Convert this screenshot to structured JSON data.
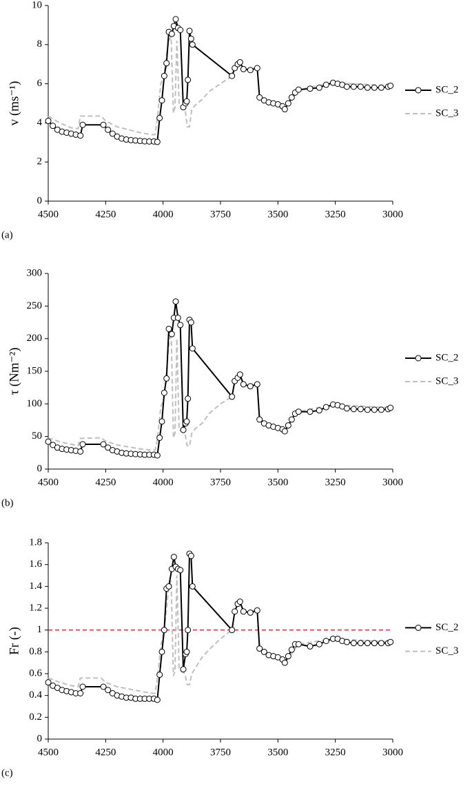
{
  "chart_data": [
    {
      "type": "line",
      "panel_label": "(a)",
      "ylabel": "v (ms⁻¹)",
      "xlim": [
        4500,
        3000
      ],
      "xticks": [
        4500,
        4250,
        4000,
        3750,
        3500,
        3250,
        3000
      ],
      "ylim": [
        0,
        10
      ],
      "yticks": [
        0,
        2,
        4,
        6,
        8,
        10
      ],
      "series": [
        {
          "name": "SC_2",
          "color": "#000000",
          "marker": true,
          "line_style": "solid",
          "x": [
            4500,
            4480,
            4460,
            4440,
            4420,
            4400,
            4380,
            4360,
            4350,
            4260,
            4240,
            4220,
            4200,
            4180,
            4160,
            4140,
            4120,
            4100,
            4080,
            4060,
            4040,
            4025,
            4015,
            4005,
            3995,
            3985,
            3975,
            3962,
            3953,
            3945,
            3935,
            3925,
            3912,
            3902,
            3897,
            3892,
            3885,
            3878,
            3872,
            3700,
            3688,
            3675,
            3665,
            3650,
            3620,
            3590,
            3580,
            3560,
            3540,
            3520,
            3500,
            3480,
            3470,
            3455,
            3440,
            3425,
            3410,
            3360,
            3320,
            3290,
            3260,
            3240,
            3220,
            3200,
            3170,
            3140,
            3110,
            3080,
            3050,
            3020,
            3010
          ],
          "values": [
            4.1,
            3.85,
            3.65,
            3.55,
            3.5,
            3.45,
            3.4,
            3.35,
            3.9,
            3.9,
            3.65,
            3.45,
            3.3,
            3.2,
            3.15,
            3.12,
            3.1,
            3.08,
            3.06,
            3.05,
            3.05,
            3.03,
            4.25,
            5.15,
            6.4,
            7.05,
            8.65,
            8.55,
            8.95,
            9.3,
            8.85,
            8.75,
            4.8,
            5.0,
            5.1,
            6.2,
            8.7,
            8.3,
            8.0,
            6.4,
            6.8,
            7.0,
            7.1,
            6.75,
            6.7,
            6.8,
            5.3,
            5.15,
            5.05,
            5.0,
            4.95,
            4.85,
            4.7,
            5.0,
            5.3,
            5.55,
            5.7,
            5.75,
            5.8,
            5.95,
            6.05,
            6.0,
            5.95,
            5.85,
            5.85,
            5.85,
            5.8,
            5.8,
            5.8,
            5.85,
            5.9
          ]
        },
        {
          "name": "SC_3",
          "color": "#bfbfbf",
          "marker": false,
          "line_style": "dashed",
          "x": [
            4500,
            4450,
            4400,
            4370,
            4360,
            4270,
            4250,
            4200,
            4100,
            4050,
            4035,
            4025,
            4010,
            3995,
            3985,
            3975,
            3965,
            3955,
            3948,
            3940,
            3930,
            3918,
            3905,
            3895,
            3885,
            3875,
            3860,
            3830,
            3800,
            3750,
            3700,
            3688,
            3665,
            3650,
            3590,
            3580,
            3470,
            3410,
            3260,
            3010
          ],
          "values": [
            4.35,
            4.0,
            3.75,
            3.7,
            4.35,
            4.35,
            4.1,
            3.8,
            3.5,
            3.4,
            3.4,
            4.2,
            6.0,
            6.5,
            7.5,
            8.2,
            8.4,
            4.5,
            4.8,
            8.2,
            5.0,
            4.9,
            4.8,
            3.8,
            3.8,
            4.7,
            4.9,
            5.2,
            5.6,
            6.0,
            6.4,
            6.8,
            7.1,
            6.75,
            6.8,
            5.3,
            4.7,
            5.7,
            6.05,
            5.9
          ]
        }
      ]
    },
    {
      "type": "line",
      "panel_label": "(b)",
      "ylabel": "τ (Nm⁻²)",
      "xlim": [
        4500,
        3000
      ],
      "xticks": [
        4500,
        4250,
        4000,
        3750,
        3500,
        3250,
        3000
      ],
      "ylim": [
        0,
        300
      ],
      "yticks": [
        0,
        50,
        100,
        150,
        200,
        250,
        300
      ],
      "series": [
        {
          "name": "SC_2",
          "color": "#000000",
          "marker": true,
          "line_style": "solid",
          "x": [
            4500,
            4480,
            4460,
            4440,
            4420,
            4400,
            4380,
            4360,
            4350,
            4260,
            4240,
            4220,
            4200,
            4180,
            4160,
            4140,
            4120,
            4100,
            4080,
            4060,
            4040,
            4025,
            4015,
            4005,
            3995,
            3985,
            3975,
            3962,
            3953,
            3945,
            3935,
            3925,
            3912,
            3902,
            3897,
            3892,
            3885,
            3878,
            3872,
            3700,
            3688,
            3675,
            3665,
            3650,
            3620,
            3590,
            3580,
            3560,
            3540,
            3520,
            3500,
            3480,
            3470,
            3455,
            3440,
            3425,
            3410,
            3360,
            3320,
            3290,
            3260,
            3240,
            3220,
            3200,
            3170,
            3140,
            3110,
            3080,
            3050,
            3020,
            3010
          ],
          "values": [
            42,
            37,
            33,
            31,
            30,
            29,
            28,
            27,
            38,
            38,
            33,
            29,
            27,
            25,
            24,
            23.5,
            23,
            22.5,
            22,
            22,
            22,
            21,
            48,
            73,
            117,
            139,
            215,
            207,
            232,
            257,
            232,
            221,
            60,
            70,
            73,
            108,
            229,
            225,
            185,
            111,
            135,
            140,
            145,
            130,
            127,
            130,
            76,
            70,
            67,
            65,
            63,
            61,
            58,
            67,
            76,
            85,
            88,
            88,
            90,
            95,
            99,
            98,
            96,
            93,
            92,
            92,
            91,
            91,
            91,
            92,
            94
          ]
        },
        {
          "name": "SC_3",
          "color": "#bfbfbf",
          "marker": false,
          "line_style": "dashed",
          "x": [
            4500,
            4450,
            4400,
            4370,
            4360,
            4270,
            4250,
            4200,
            4100,
            4050,
            4035,
            4025,
            4010,
            3995,
            3985,
            3975,
            3965,
            3955,
            3948,
            3940,
            3930,
            3918,
            3905,
            3895,
            3885,
            3875,
            3860,
            3830,
            3800,
            3750,
            3700,
            3688,
            3665,
            3650,
            3590,
            3580,
            3470,
            3410,
            3260,
            3010
          ],
          "values": [
            48,
            42,
            38,
            36,
            47,
            48,
            43,
            37,
            31,
            29,
            29,
            45,
            95,
            110,
            150,
            190,
            215,
            48,
            55,
            200,
            60,
            58,
            55,
            36,
            35,
            55,
            62,
            70,
            85,
            100,
            111,
            135,
            145,
            130,
            130,
            76,
            58,
            88,
            99,
            94
          ]
        }
      ]
    },
    {
      "type": "line",
      "panel_label": "(c)",
      "ylabel": "Fr (-)",
      "xlim": [
        4500,
        3000
      ],
      "xticks": [
        4500,
        4250,
        4000,
        3750,
        3500,
        3250,
        3000
      ],
      "ylim": [
        0,
        1.8
      ],
      "yticks": [
        0,
        0.2,
        0.4,
        0.6,
        0.8,
        1,
        1.2,
        1.4,
        1.6,
        1.8
      ],
      "hline": {
        "value": 1,
        "color": "#e8262a",
        "line_style": "dashed"
      },
      "series": [
        {
          "name": "SC_2",
          "color": "#000000",
          "marker": true,
          "line_style": "solid",
          "x": [
            4500,
            4480,
            4460,
            4440,
            4420,
            4400,
            4380,
            4360,
            4350,
            4260,
            4240,
            4220,
            4200,
            4180,
            4160,
            4140,
            4120,
            4100,
            4080,
            4060,
            4040,
            4025,
            4015,
            4005,
            3995,
            3985,
            3975,
            3962,
            3953,
            3945,
            3935,
            3925,
            3912,
            3902,
            3897,
            3892,
            3885,
            3878,
            3872,
            3700,
            3688,
            3675,
            3665,
            3650,
            3620,
            3590,
            3580,
            3560,
            3540,
            3520,
            3500,
            3480,
            3470,
            3455,
            3440,
            3425,
            3410,
            3360,
            3320,
            3290,
            3260,
            3240,
            3220,
            3200,
            3170,
            3140,
            3110,
            3080,
            3050,
            3020,
            3010
          ],
          "values": [
            0.52,
            0.49,
            0.47,
            0.45,
            0.44,
            0.43,
            0.42,
            0.42,
            0.48,
            0.48,
            0.45,
            0.42,
            0.4,
            0.39,
            0.38,
            0.38,
            0.37,
            0.37,
            0.37,
            0.37,
            0.37,
            0.36,
            0.59,
            0.8,
            1.0,
            1.38,
            1.4,
            1.56,
            1.67,
            1.58,
            1.56,
            1.55,
            0.64,
            0.78,
            0.8,
            1.0,
            1.7,
            1.68,
            1.4,
            1.0,
            1.17,
            1.24,
            1.26,
            1.17,
            1.16,
            1.18,
            0.83,
            0.8,
            0.77,
            0.76,
            0.75,
            0.73,
            0.7,
            0.76,
            0.82,
            0.87,
            0.87,
            0.85,
            0.87,
            0.9,
            0.92,
            0.92,
            0.9,
            0.89,
            0.88,
            0.88,
            0.88,
            0.88,
            0.88,
            0.88,
            0.89
          ]
        },
        {
          "name": "SC_3",
          "color": "#bfbfbf",
          "marker": false,
          "line_style": "dashed",
          "x": [
            4500,
            4450,
            4400,
            4370,
            4360,
            4270,
            4250,
            4200,
            4100,
            4050,
            4035,
            4025,
            4010,
            3995,
            3985,
            3975,
            3965,
            3955,
            3948,
            3940,
            3930,
            3918,
            3905,
            3895,
            3885,
            3875,
            3860,
            3830,
            3800,
            3750,
            3700,
            3688,
            3665,
            3650,
            3590,
            3580,
            3470,
            3410,
            3260,
            3010
          ],
          "values": [
            0.56,
            0.52,
            0.49,
            0.48,
            0.56,
            0.56,
            0.52,
            0.48,
            0.44,
            0.42,
            0.42,
            0.55,
            0.85,
            1.0,
            1.2,
            1.4,
            1.45,
            0.58,
            0.62,
            1.5,
            0.65,
            0.62,
            0.6,
            0.5,
            0.5,
            0.6,
            0.65,
            0.75,
            0.82,
            0.92,
            1.0,
            1.17,
            1.26,
            1.17,
            1.18,
            0.83,
            0.7,
            0.87,
            0.92,
            0.89
          ]
        }
      ]
    }
  ]
}
